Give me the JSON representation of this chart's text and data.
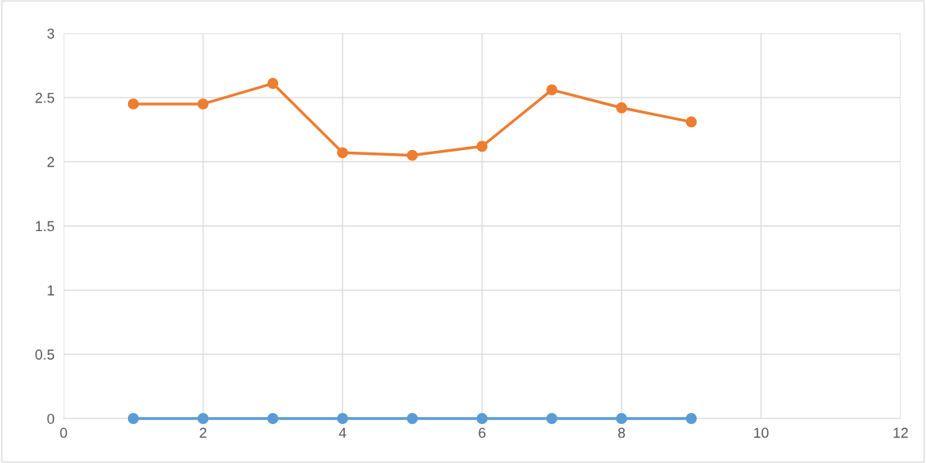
{
  "chart_data": {
    "type": "line",
    "x": [
      1,
      2,
      3,
      4,
      5,
      6,
      7,
      8,
      9
    ],
    "series": [
      {
        "color": "#5b9bd5",
        "values": [
          0,
          0,
          0,
          0,
          0,
          0,
          0,
          0,
          0
        ]
      },
      {
        "color": "#ed7d31",
        "values": [
          2.45,
          2.45,
          2.61,
          2.07,
          2.05,
          2.12,
          2.56,
          2.42,
          2.31
        ]
      }
    ],
    "xlim": [
      0,
      12
    ],
    "xticks": [
      0,
      2,
      4,
      6,
      8,
      10,
      12
    ],
    "ylim": [
      0,
      3
    ],
    "yticks": [
      0,
      0.5,
      1,
      1.5,
      2,
      2.5,
      3
    ],
    "grid": true,
    "marker": "circle",
    "line_style": "solid"
  }
}
